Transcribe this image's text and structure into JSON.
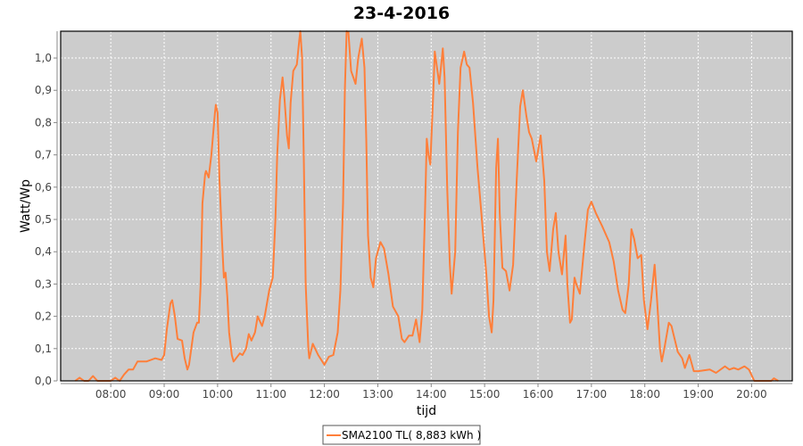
{
  "chart_data": {
    "type": "line",
    "title": "23-4-2016",
    "xlabel": "tijd",
    "ylabel": "Watt/Wp",
    "xlim": [
      "07:04",
      "20:45"
    ],
    "ylim": [
      0,
      1.083
    ],
    "x_ticks": [
      "08:00",
      "09:00",
      "10:00",
      "11:00",
      "12:00",
      "13:00",
      "14:00",
      "15:00",
      "16:00",
      "17:00",
      "18:00",
      "19:00",
      "20:00"
    ],
    "y_ticks": [
      "0,0",
      "0,1",
      "0,2",
      "0,3",
      "0,4",
      "0,5",
      "0,6",
      "0,7",
      "0,8",
      "0,9",
      "1,0"
    ],
    "grid": true,
    "background": "#cccccc",
    "legend_position": "bottom",
    "series": [
      {
        "name": "SMA2100 TL( 8,883 kWh )",
        "color": "#ff7f3a",
        "points": [
          [
            "07:20",
            0
          ],
          [
            "07:25",
            0.01
          ],
          [
            "07:30",
            0
          ],
          [
            "07:35",
            0
          ],
          [
            "07:40",
            0.015
          ],
          [
            "07:45",
            0
          ],
          [
            "08:00",
            0
          ],
          [
            "08:05",
            0.01
          ],
          [
            "08:10",
            0
          ],
          [
            "08:15",
            0.02
          ],
          [
            "08:20",
            0.035
          ],
          [
            "08:25",
            0.035
          ],
          [
            "08:30",
            0.06
          ],
          [
            "08:40",
            0.06
          ],
          [
            "08:50",
            0.07
          ],
          [
            "08:57",
            0.065
          ],
          [
            "09:00",
            0.08
          ],
          [
            "09:03",
            0.16
          ],
          [
            "09:07",
            0.24
          ],
          [
            "09:09",
            0.25
          ],
          [
            "09:12",
            0.2
          ],
          [
            "09:15",
            0.13
          ],
          [
            "09:20",
            0.125
          ],
          [
            "09:23",
            0.07
          ],
          [
            "09:26",
            0.035
          ],
          [
            "09:28",
            0.05
          ],
          [
            "09:33",
            0.15
          ],
          [
            "09:37",
            0.18
          ],
          [
            "09:39",
            0.18
          ],
          [
            "09:41",
            0.3
          ],
          [
            "09:43",
            0.55
          ],
          [
            "09:46",
            0.64
          ],
          [
            "09:47",
            0.65
          ],
          [
            "09:50",
            0.63
          ],
          [
            "09:53",
            0.7
          ],
          [
            "09:57",
            0.83
          ],
          [
            "09:58",
            0.855
          ],
          [
            "10:00",
            0.83
          ],
          [
            "10:02",
            0.63
          ],
          [
            "10:05",
            0.43
          ],
          [
            "10:07",
            0.32
          ],
          [
            "10:09",
            0.335
          ],
          [
            "10:11",
            0.26
          ],
          [
            "10:13",
            0.15
          ],
          [
            "10:16",
            0.08
          ],
          [
            "10:18",
            0.06
          ],
          [
            "10:25",
            0.085
          ],
          [
            "10:28",
            0.08
          ],
          [
            "10:32",
            0.1
          ],
          [
            "10:35",
            0.145
          ],
          [
            "10:38",
            0.125
          ],
          [
            "10:42",
            0.15
          ],
          [
            "10:45",
            0.2
          ],
          [
            "10:50",
            0.17
          ],
          [
            "10:53",
            0.2
          ],
          [
            "10:58",
            0.28
          ],
          [
            "11:02",
            0.32
          ],
          [
            "11:05",
            0.5
          ],
          [
            "11:07",
            0.7
          ],
          [
            "11:10",
            0.87
          ],
          [
            "11:13",
            0.94
          ],
          [
            "11:15",
            0.88
          ],
          [
            "11:18",
            0.76
          ],
          [
            "11:20",
            0.72
          ],
          [
            "11:22",
            0.86
          ],
          [
            "11:25",
            0.96
          ],
          [
            "11:29",
            0.98
          ],
          [
            "11:32",
            1.06
          ],
          [
            "11:33",
            1.083
          ],
          [
            "11:35",
            1.0
          ],
          [
            "11:37",
            0.67
          ],
          [
            "11:39",
            0.3
          ],
          [
            "11:42",
            0.1
          ],
          [
            "11:43",
            0.07
          ],
          [
            "11:47",
            0.115
          ],
          [
            "11:53",
            0.08
          ],
          [
            "12:00",
            0.05
          ],
          [
            "12:05",
            0.075
          ],
          [
            "12:10",
            0.08
          ],
          [
            "12:15",
            0.15
          ],
          [
            "12:18",
            0.28
          ],
          [
            "12:21",
            0.55
          ],
          [
            "12:23",
            0.9
          ],
          [
            "12:25",
            1.083
          ],
          [
            "12:27",
            1.08
          ],
          [
            "12:30",
            0.96
          ],
          [
            "12:35",
            0.92
          ],
          [
            "12:38",
            1.0
          ],
          [
            "12:42",
            1.06
          ],
          [
            "12:45",
            0.97
          ],
          [
            "12:47",
            0.75
          ],
          [
            "12:49",
            0.45
          ],
          [
            "12:52",
            0.32
          ],
          [
            "12:55",
            0.29
          ],
          [
            "12:58",
            0.38
          ],
          [
            "13:03",
            0.43
          ],
          [
            "13:07",
            0.41
          ],
          [
            "13:12",
            0.33
          ],
          [
            "13:17",
            0.23
          ],
          [
            "13:23",
            0.2
          ],
          [
            "13:27",
            0.13
          ],
          [
            "13:30",
            0.12
          ],
          [
            "13:35",
            0.14
          ],
          [
            "13:39",
            0.14
          ],
          [
            "13:43",
            0.19
          ],
          [
            "13:47",
            0.12
          ],
          [
            "13:50",
            0.22
          ],
          [
            "13:53",
            0.52
          ],
          [
            "13:55",
            0.75
          ],
          [
            "13:57",
            0.7
          ],
          [
            "13:59",
            0.67
          ],
          [
            "14:02",
            0.87
          ],
          [
            "14:04",
            1.02
          ],
          [
            "14:07",
            0.96
          ],
          [
            "14:09",
            0.92
          ],
          [
            "14:12",
            1.0
          ],
          [
            "14:13",
            1.03
          ],
          [
            "14:15",
            0.94
          ],
          [
            "14:18",
            0.6
          ],
          [
            "14:21",
            0.36
          ],
          [
            "14:23",
            0.27
          ],
          [
            "14:27",
            0.4
          ],
          [
            "14:30",
            0.77
          ],
          [
            "14:33",
            0.97
          ],
          [
            "14:37",
            1.02
          ],
          [
            "14:40",
            0.98
          ],
          [
            "14:43",
            0.97
          ],
          [
            "14:47",
            0.86
          ],
          [
            "14:52",
            0.66
          ],
          [
            "14:57",
            0.5
          ],
          [
            "15:02",
            0.33
          ],
          [
            "15:05",
            0.2
          ],
          [
            "15:08",
            0.15
          ],
          [
            "15:10",
            0.25
          ],
          [
            "15:13",
            0.66
          ],
          [
            "15:15",
            0.75
          ],
          [
            "15:17",
            0.52
          ],
          [
            "15:20",
            0.35
          ],
          [
            "15:24",
            0.34
          ],
          [
            "15:28",
            0.28
          ],
          [
            "15:32",
            0.36
          ],
          [
            "15:36",
            0.62
          ],
          [
            "15:40",
            0.85
          ],
          [
            "15:43",
            0.9
          ],
          [
            "15:47",
            0.82
          ],
          [
            "15:50",
            0.77
          ],
          [
            "15:53",
            0.75
          ],
          [
            "15:58",
            0.68
          ],
          [
            "16:03",
            0.76
          ],
          [
            "16:07",
            0.62
          ],
          [
            "16:10",
            0.4
          ],
          [
            "16:13",
            0.34
          ],
          [
            "16:17",
            0.47
          ],
          [
            "16:20",
            0.52
          ],
          [
            "16:23",
            0.4
          ],
          [
            "16:27",
            0.33
          ],
          [
            "16:31",
            0.45
          ],
          [
            "16:33",
            0.3
          ],
          [
            "16:36",
            0.18
          ],
          [
            "16:38",
            0.19
          ],
          [
            "16:41",
            0.32
          ],
          [
            "16:43",
            0.3
          ],
          [
            "16:47",
            0.27
          ],
          [
            "16:52",
            0.42
          ],
          [
            "16:56",
            0.53
          ],
          [
            "17:00",
            0.555
          ],
          [
            "17:05",
            0.52
          ],
          [
            "17:12",
            0.48
          ],
          [
            "17:20",
            0.43
          ],
          [
            "17:25",
            0.37
          ],
          [
            "17:30",
            0.28
          ],
          [
            "17:35",
            0.22
          ],
          [
            "17:38",
            0.21
          ],
          [
            "17:42",
            0.3
          ],
          [
            "17:45",
            0.47
          ],
          [
            "17:48",
            0.44
          ],
          [
            "17:52",
            0.38
          ],
          [
            "17:56",
            0.39
          ],
          [
            "17:59",
            0.25
          ],
          [
            "18:03",
            0.16
          ],
          [
            "18:07",
            0.25
          ],
          [
            "18:11",
            0.36
          ],
          [
            "18:14",
            0.24
          ],
          [
            "18:17",
            0.1
          ],
          [
            "18:19",
            0.06
          ],
          [
            "18:22",
            0.1
          ],
          [
            "18:27",
            0.18
          ],
          [
            "18:30",
            0.17
          ],
          [
            "18:37",
            0.09
          ],
          [
            "18:42",
            0.07
          ],
          [
            "18:45",
            0.04
          ],
          [
            "18:50",
            0.08
          ],
          [
            "18:55",
            0.03
          ],
          [
            "19:00",
            0.03
          ],
          [
            "19:13",
            0.035
          ],
          [
            "19:20",
            0.025
          ],
          [
            "19:30",
            0.045
          ],
          [
            "19:35",
            0.035
          ],
          [
            "19:40",
            0.04
          ],
          [
            "19:45",
            0.035
          ],
          [
            "19:52",
            0.045
          ],
          [
            "19:57",
            0.035
          ],
          [
            "20:03",
            0
          ],
          [
            "20:22",
            0
          ],
          [
            "20:25",
            0.008
          ],
          [
            "20:30",
            0
          ]
        ]
      }
    ]
  }
}
